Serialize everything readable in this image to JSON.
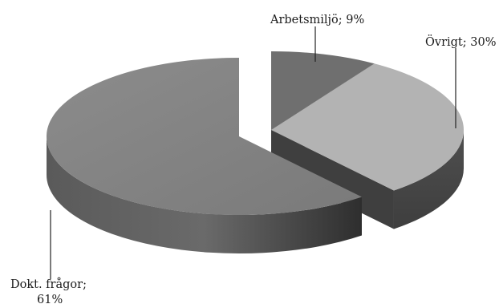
{
  "chart_data": {
    "type": "pie",
    "style": "3d-exploded",
    "slices": [
      {
        "label": "Arbetsmiljö",
        "value": 9,
        "label_text": "Arbetsmiljö; 9%",
        "top": "#6f6f6f",
        "side": "#4a4a4a"
      },
      {
        "label": "Övrigt",
        "value": 30,
        "label_text": "Övrigt; 30%",
        "top": "#b3b3b3",
        "side": "#5a5a5a"
      },
      {
        "label": "Dokt. frågor",
        "value": 61,
        "label_line1": "Dokt. frågor;",
        "label_line2": "61%",
        "top": "#858585",
        "side": "#5e5e5e"
      }
    ],
    "legend": "none",
    "data_labels": "outside with leader lines"
  }
}
